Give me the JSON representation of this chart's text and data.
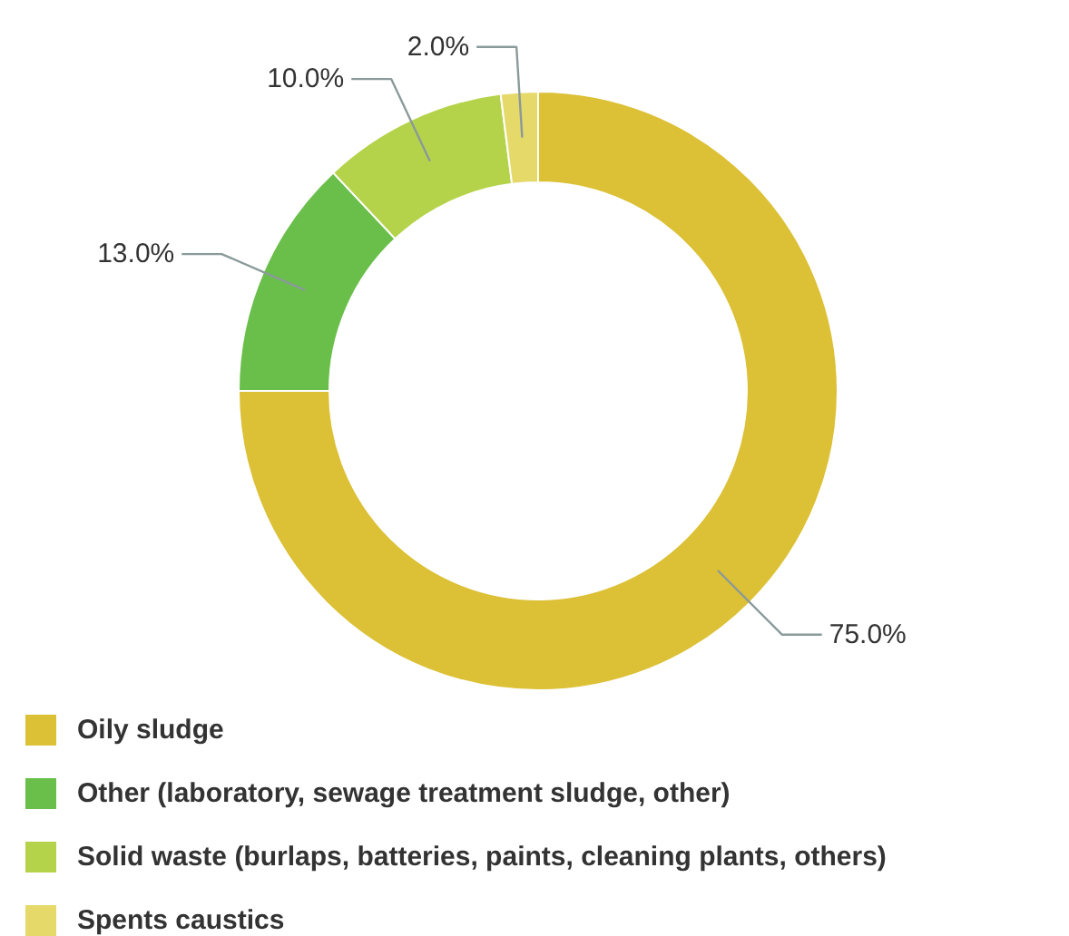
{
  "chart_data": {
    "type": "donut",
    "categories": [
      "Oily sludge",
      "Other (laboratory, sewage treatment sludge, other)",
      "Solid waste (burlaps, batteries, paints, cleaning plants, others)",
      "Spents caustics"
    ],
    "values": [
      75.0,
      13.0,
      10.0,
      2.0
    ],
    "colors": [
      "#dcc035",
      "#6abf4b",
      "#b5d34a",
      "#e5d96a"
    ],
    "value_labels": [
      "75.0%",
      "13.0%",
      "10.0%",
      "2.0%"
    ],
    "legend": "bottom"
  }
}
